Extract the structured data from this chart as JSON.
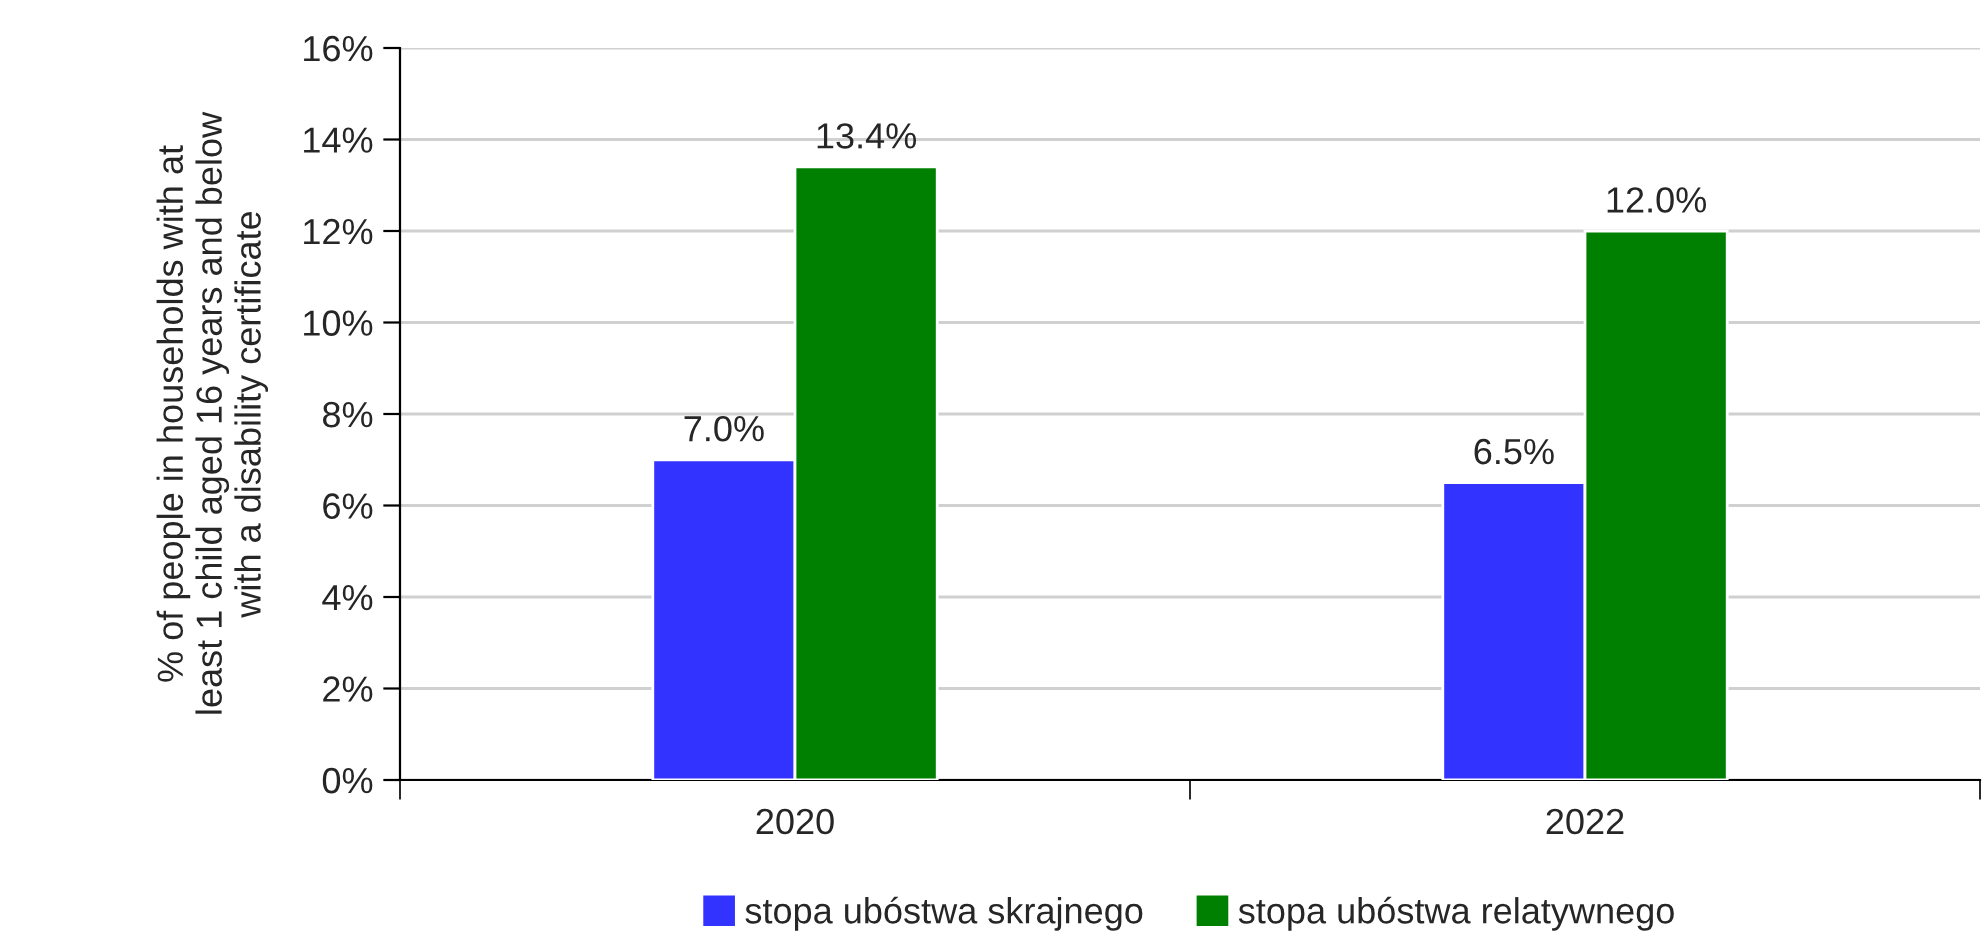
{
  "chart_data": {
    "type": "bar",
    "ylabel": "% of people in households with at\nleast 1 child aged 16 years and below\nwith a disability certificate",
    "categories": [
      "2020",
      "2022"
    ],
    "series": [
      {
        "name": "stopa ubóstwa skrajnego",
        "color": "#3333ff",
        "values": [
          7.0,
          6.5
        ],
        "value_labels": [
          "7.0%",
          "6.5%"
        ]
      },
      {
        "name": "stopa ubóstwa relatywnego",
        "color": "#008000",
        "values": [
          13.4,
          12.0
        ],
        "value_labels": [
          "13.4%",
          "12.0%"
        ]
      }
    ],
    "ylim": [
      0,
      16
    ],
    "yticks": [
      {
        "value": 0,
        "label": "0%"
      },
      {
        "value": 2,
        "label": "2%"
      },
      {
        "value": 4,
        "label": "4%"
      },
      {
        "value": 6,
        "label": "6%"
      },
      {
        "value": 8,
        "label": "8%"
      },
      {
        "value": 10,
        "label": "10%"
      },
      {
        "value": 12,
        "label": "12%"
      },
      {
        "value": 14,
        "label": "14%"
      },
      {
        "value": 16,
        "label": "16%"
      }
    ],
    "grid": "y",
    "legend": "bottom"
  }
}
